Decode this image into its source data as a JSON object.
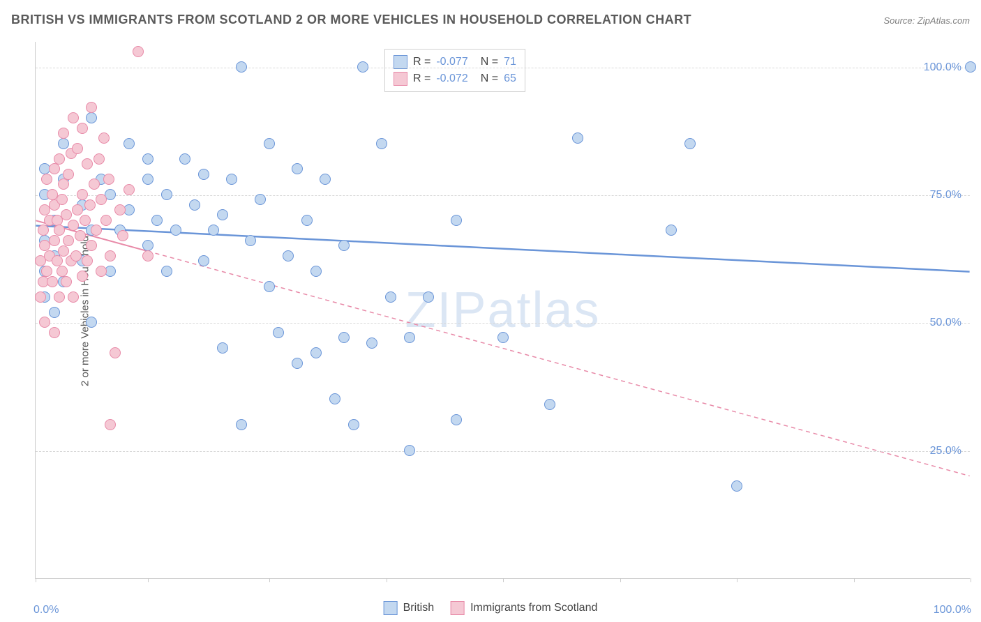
{
  "title": "BRITISH VS IMMIGRANTS FROM SCOTLAND 2 OR MORE VEHICLES IN HOUSEHOLD CORRELATION CHART",
  "source": "Source: ZipAtlas.com",
  "watermark": "ZIPatlas",
  "ylabel": "2 or more Vehicles in Household",
  "chart": {
    "type": "scatter",
    "xlim": [
      0,
      100
    ],
    "ylim": [
      0,
      105
    ],
    "xtick_positions": [
      0,
      12,
      25,
      37.5,
      50,
      62.5,
      75,
      87.5,
      100
    ],
    "xtick_labels": {
      "0": "0.0%",
      "100": "100.0%"
    },
    "ytick_positions": [
      25,
      50,
      75,
      100
    ],
    "ytick_labels": {
      "25": "25.0%",
      "50": "50.0%",
      "75": "75.0%",
      "100": "100.0%"
    },
    "grid_color": "#d8d8d8",
    "background_color": "#ffffff",
    "marker_size": 16,
    "series": [
      {
        "name": "British",
        "fill": "#c3d8f0",
        "stroke": "#6a95d8",
        "R": "-0.077",
        "N": "71",
        "line": {
          "y_at_0": 69,
          "y_at_100": 60,
          "dashed_from_x": null,
          "stroke_width": 2.5
        },
        "points": [
          [
            1,
            55
          ],
          [
            1,
            60
          ],
          [
            1,
            66
          ],
          [
            1,
            75
          ],
          [
            1,
            80
          ],
          [
            2,
            52
          ],
          [
            2,
            63
          ],
          [
            2,
            70
          ],
          [
            3,
            58
          ],
          [
            3,
            78
          ],
          [
            3,
            85
          ],
          [
            5,
            62
          ],
          [
            5,
            73
          ],
          [
            6,
            50
          ],
          [
            6,
            68
          ],
          [
            6,
            90
          ],
          [
            7,
            78
          ],
          [
            8,
            60
          ],
          [
            8,
            75
          ],
          [
            9,
            68
          ],
          [
            10,
            72
          ],
          [
            10,
            85
          ],
          [
            12,
            65
          ],
          [
            12,
            78
          ],
          [
            12,
            82
          ],
          [
            13,
            70
          ],
          [
            14,
            60
          ],
          [
            14,
            75
          ],
          [
            15,
            68
          ],
          [
            16,
            82
          ],
          [
            17,
            73
          ],
          [
            18,
            62
          ],
          [
            18,
            79
          ],
          [
            19,
            68
          ],
          [
            20,
            45
          ],
          [
            20,
            71
          ],
          [
            21,
            78
          ],
          [
            22,
            100
          ],
          [
            22,
            30
          ],
          [
            23,
            66
          ],
          [
            24,
            74
          ],
          [
            25,
            57
          ],
          [
            25,
            85
          ],
          [
            26,
            48
          ],
          [
            27,
            63
          ],
          [
            28,
            80
          ],
          [
            28,
            42
          ],
          [
            29,
            70
          ],
          [
            30,
            44
          ],
          [
            30,
            60
          ],
          [
            31,
            78
          ],
          [
            32,
            35
          ],
          [
            33,
            47
          ],
          [
            33,
            65
          ],
          [
            34,
            30
          ],
          [
            35,
            100
          ],
          [
            36,
            46
          ],
          [
            37,
            85
          ],
          [
            38,
            55
          ],
          [
            40,
            25
          ],
          [
            40,
            47
          ],
          [
            42,
            55
          ],
          [
            45,
            70
          ],
          [
            45,
            31
          ],
          [
            50,
            47
          ],
          [
            55,
            34
          ],
          [
            58,
            86
          ],
          [
            68,
            68
          ],
          [
            70,
            85
          ],
          [
            75,
            18
          ],
          [
            100,
            100
          ]
        ]
      },
      {
        "name": "Immigrants from Scotland",
        "fill": "#f5c8d4",
        "stroke": "#e88aa8",
        "R": "-0.072",
        "N": "65",
        "line": {
          "y_at_0": 70,
          "y_at_100": 20,
          "dashed_from_x": 12,
          "stroke_width": 1.5
        },
        "points": [
          [
            0.5,
            55
          ],
          [
            0.5,
            62
          ],
          [
            0.8,
            58
          ],
          [
            0.8,
            68
          ],
          [
            1,
            50
          ],
          [
            1,
            65
          ],
          [
            1,
            72
          ],
          [
            1.2,
            60
          ],
          [
            1.2,
            78
          ],
          [
            1.5,
            63
          ],
          [
            1.5,
            70
          ],
          [
            1.8,
            58
          ],
          [
            1.8,
            75
          ],
          [
            2,
            48
          ],
          [
            2,
            66
          ],
          [
            2,
            73
          ],
          [
            2,
            80
          ],
          [
            2.3,
            62
          ],
          [
            2.3,
            70
          ],
          [
            2.5,
            55
          ],
          [
            2.5,
            68
          ],
          [
            2.5,
            82
          ],
          [
            2.8,
            60
          ],
          [
            2.8,
            74
          ],
          [
            3,
            64
          ],
          [
            3,
            77
          ],
          [
            3,
            87
          ],
          [
            3.3,
            58
          ],
          [
            3.3,
            71
          ],
          [
            3.5,
            66
          ],
          [
            3.5,
            79
          ],
          [
            3.8,
            62
          ],
          [
            3.8,
            83
          ],
          [
            4,
            55
          ],
          [
            4,
            69
          ],
          [
            4,
            90
          ],
          [
            4.3,
            63
          ],
          [
            4.5,
            72
          ],
          [
            4.5,
            84
          ],
          [
            4.8,
            67
          ],
          [
            5,
            59
          ],
          [
            5,
            75
          ],
          [
            5,
            88
          ],
          [
            5.3,
            70
          ],
          [
            5.5,
            62
          ],
          [
            5.5,
            81
          ],
          [
            5.8,
            73
          ],
          [
            6,
            65
          ],
          [
            6,
            92
          ],
          [
            6.3,
            77
          ],
          [
            6.5,
            68
          ],
          [
            6.8,
            82
          ],
          [
            7,
            60
          ],
          [
            7,
            74
          ],
          [
            7.3,
            86
          ],
          [
            7.5,
            70
          ],
          [
            7.8,
            78
          ],
          [
            8,
            63
          ],
          [
            8,
            30
          ],
          [
            8.5,
            44
          ],
          [
            9,
            72
          ],
          [
            9.3,
            67
          ],
          [
            10,
            76
          ],
          [
            11,
            103
          ],
          [
            12,
            63
          ]
        ]
      }
    ]
  },
  "legend_bottom": [
    {
      "label": "British",
      "fill": "#c3d8f0",
      "stroke": "#6a95d8"
    },
    {
      "label": "Immigrants from Scotland",
      "fill": "#f5c8d4",
      "stroke": "#e88aa8"
    }
  ]
}
